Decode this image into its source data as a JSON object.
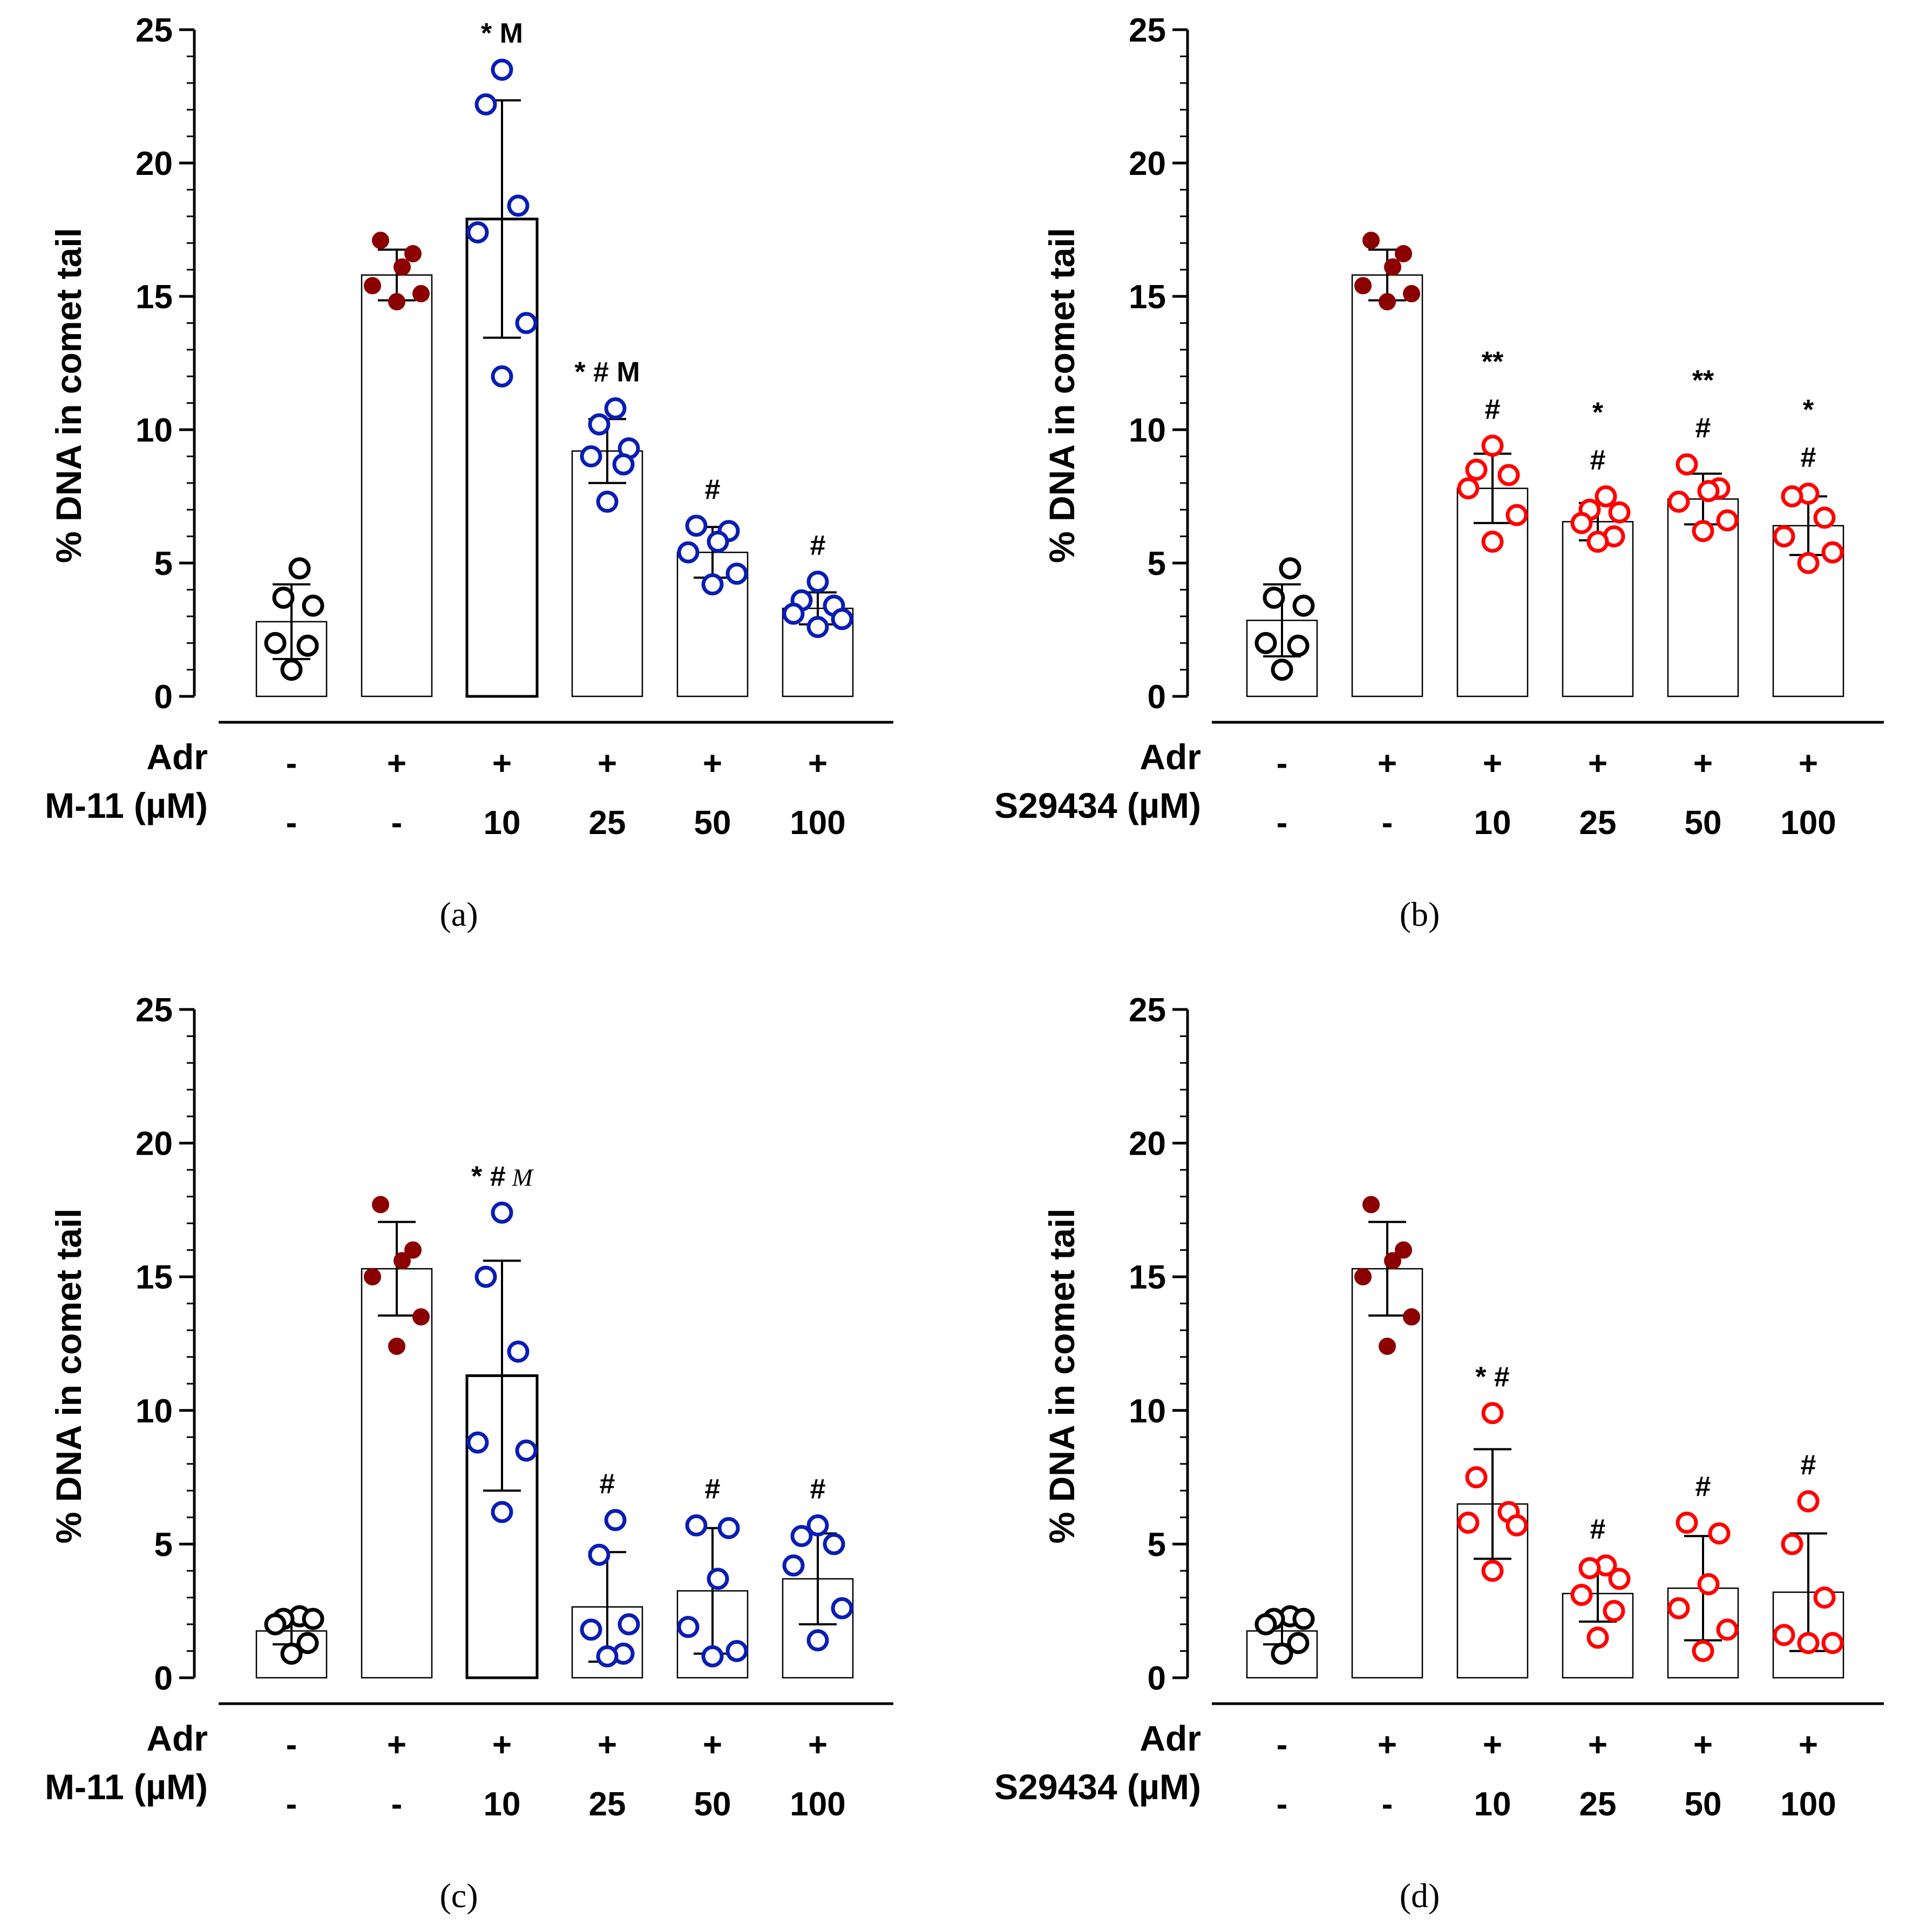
{
  "colors": {
    "control": "#000000",
    "adr": "#8b0000",
    "m11": "#0a1db3",
    "s29434": "#ff0000",
    "axis": "#000000"
  },
  "chart_data": [
    {
      "type": "bar",
      "panel_label": "(a)",
      "ylabel": "% DNA in comet tail",
      "ylim": [
        0,
        25
      ],
      "yticks": [
        0,
        5,
        10,
        15,
        20,
        25
      ],
      "row_labels": [
        "Adr",
        "M-11 (µM)"
      ],
      "adr": [
        "-",
        "+",
        "+",
        "+",
        "+",
        "+"
      ],
      "dose": [
        "-",
        "-",
        "10",
        "25",
        "50",
        "100"
      ],
      "values": [
        2.8,
        15.8,
        17.9,
        9.2,
        5.4,
        3.3
      ],
      "errors": [
        1.4,
        0.95,
        4.45,
        1.2,
        0.95,
        0.6
      ],
      "marker": [
        "control",
        "adr",
        "m11",
        "m11",
        "m11",
        "m11"
      ],
      "points": [
        [
          4.8,
          3.7,
          3.4,
          2.0,
          1.9,
          1.0
        ],
        [
          17.1,
          16.6,
          16.1,
          15.4,
          15.1,
          14.8
        ],
        [
          23.5,
          22.2,
          18.4,
          17.4,
          14.0,
          12.0
        ],
        [
          10.8,
          10.2,
          9.3,
          9.0,
          8.7,
          7.3
        ],
        [
          6.4,
          6.2,
          5.8,
          5.4,
          4.6,
          4.2
        ],
        [
          4.3,
          3.6,
          3.4,
          3.1,
          2.9,
          2.6
        ]
      ],
      "annotations": [
        {
          "index": 2,
          "lines": [
            {
              "text": "* M"
            }
          ]
        },
        {
          "index": 3,
          "lines": [
            {
              "text": "* # M"
            }
          ]
        },
        {
          "index": 4,
          "lines": [
            {
              "text": "#"
            }
          ]
        },
        {
          "index": 5,
          "lines": [
            {
              "text": "#"
            }
          ]
        }
      ]
    },
    {
      "type": "bar",
      "panel_label": "(b)",
      "ylabel": "% DNA in comet tail",
      "ylim": [
        0,
        25
      ],
      "yticks": [
        0,
        5,
        10,
        15,
        20,
        25
      ],
      "row_labels": [
        "Adr",
        "S29434 (µM)"
      ],
      "adr": [
        "-",
        "+",
        "+",
        "+",
        "+",
        "+"
      ],
      "dose": [
        "-",
        "-",
        "10",
        "25",
        "50",
        "100"
      ],
      "values": [
        2.85,
        15.8,
        7.8,
        6.55,
        7.4,
        6.4
      ],
      "errors": [
        1.35,
        0.95,
        1.3,
        0.7,
        0.95,
        1.1
      ],
      "marker": [
        "control",
        "adr",
        "s29434",
        "s29434",
        "s29434",
        "s29434"
      ],
      "points": [
        [
          4.8,
          3.7,
          3.4,
          2.0,
          1.9,
          1.0
        ],
        [
          17.1,
          16.6,
          16.1,
          15.4,
          15.1,
          14.8
        ],
        [
          9.4,
          8.5,
          8.3,
          7.8,
          6.8,
          5.8
        ],
        [
          7.5,
          7.0,
          6.9,
          6.5,
          6.0,
          5.8
        ],
        [
          8.7,
          7.8,
          7.7,
          7.3,
          6.6,
          6.2
        ],
        [
          7.6,
          7.5,
          6.7,
          6.0,
          5.4,
          5.0
        ]
      ],
      "annotations": [
        {
          "index": 2,
          "lines": [
            {
              "text": "**"
            },
            {
              "text": "#"
            }
          ]
        },
        {
          "index": 3,
          "lines": [
            {
              "text": "*"
            },
            {
              "text": "#"
            }
          ]
        },
        {
          "index": 4,
          "lines": [
            {
              "text": "**"
            },
            {
              "text": "#"
            }
          ]
        },
        {
          "index": 5,
          "lines": [
            {
              "text": "*"
            },
            {
              "text": "#"
            }
          ]
        }
      ]
    },
    {
      "type": "bar",
      "panel_label": "(c)",
      "ylabel": "% DNA in comet tail",
      "ylim": [
        0,
        25
      ],
      "yticks": [
        0,
        5,
        10,
        15,
        20,
        25
      ],
      "row_labels": [
        "Adr",
        "M-11 (µM)"
      ],
      "adr": [
        "-",
        "+",
        "+",
        "+",
        "+",
        "+"
      ],
      "dose": [
        "-",
        "-",
        "10",
        "25",
        "50",
        "100"
      ],
      "values": [
        1.75,
        15.3,
        11.3,
        2.65,
        3.25,
        3.7
      ],
      "errors": [
        0.5,
        1.75,
        4.3,
        2.05,
        2.35,
        1.7
      ],
      "marker": [
        "control",
        "adr",
        "m11",
        "m11",
        "m11",
        "m11"
      ],
      "points": [
        [
          2.3,
          2.2,
          2.2,
          2.0,
          1.3,
          0.9
        ],
        [
          17.7,
          16.0,
          15.6,
          15.0,
          13.5,
          12.4
        ],
        [
          17.4,
          15.0,
          12.2,
          8.8,
          8.5,
          6.2
        ],
        [
          5.9,
          4.6,
          2.0,
          1.8,
          0.9,
          0.8
        ],
        [
          5.7,
          5.6,
          3.7,
          1.9,
          1.0,
          0.8
        ],
        [
          5.7,
          5.3,
          5.0,
          4.2,
          2.6,
          1.4
        ]
      ],
      "annotations": [
        {
          "index": 2,
          "lines": [
            {
              "text": "* #",
              "suffix_italic": "M"
            }
          ]
        },
        {
          "index": 3,
          "lines": [
            {
              "text": "#"
            }
          ]
        },
        {
          "index": 4,
          "lines": [
            {
              "text": "#"
            }
          ]
        },
        {
          "index": 5,
          "lines": [
            {
              "text": "#"
            }
          ]
        }
      ]
    },
    {
      "type": "bar",
      "panel_label": "(d)",
      "ylabel": "% DNA in comet tail",
      "ylim": [
        0,
        25
      ],
      "yticks": [
        0,
        5,
        10,
        15,
        20,
        25
      ],
      "row_labels": [
        "Adr",
        "S29434 (µM)"
      ],
      "adr": [
        "-",
        "+",
        "+",
        "+",
        "+",
        "+"
      ],
      "dose": [
        "-",
        "-",
        "10",
        "25",
        "50",
        "100"
      ],
      "values": [
        1.75,
        15.3,
        6.5,
        3.15,
        3.35,
        3.2
      ],
      "errors": [
        0.5,
        1.75,
        2.05,
        1.05,
        1.95,
        2.2
      ],
      "marker": [
        "control",
        "adr",
        "s29434",
        "s29434",
        "s29434",
        "s29434"
      ],
      "points": [
        [
          2.3,
          2.2,
          2.2,
          2.0,
          1.3,
          0.9
        ],
        [
          17.7,
          16.0,
          15.6,
          15.0,
          13.5,
          12.4
        ],
        [
          9.9,
          7.5,
          6.2,
          5.8,
          5.7,
          4.0
        ],
        [
          4.2,
          4.1,
          3.7,
          3.1,
          2.5,
          1.5
        ],
        [
          5.8,
          5.4,
          3.5,
          2.6,
          1.8,
          1.0
        ],
        [
          6.6,
          5.0,
          3.0,
          1.6,
          1.3,
          1.3
        ]
      ],
      "annotations": [
        {
          "index": 2,
          "lines": [
            {
              "text": "* #"
            }
          ]
        },
        {
          "index": 3,
          "lines": [
            {
              "text": "#"
            }
          ]
        },
        {
          "index": 4,
          "lines": [
            {
              "text": "#"
            }
          ]
        },
        {
          "index": 5,
          "lines": [
            {
              "text": "#"
            }
          ]
        }
      ]
    }
  ]
}
